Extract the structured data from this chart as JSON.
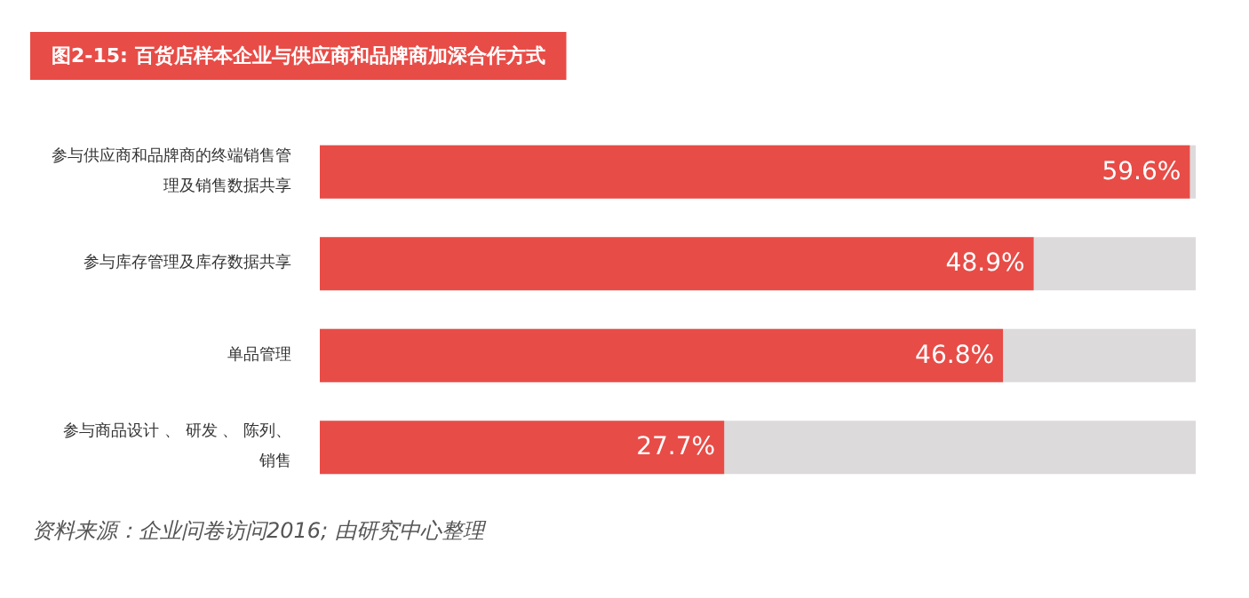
{
  "chart_data": {
    "type": "bar",
    "orientation": "horizontal",
    "title": "图2-15: 百货店样本企业与供应商和品牌商加深合作方式",
    "categories": [
      "参与供应商和品牌商的终端销售管理及销售数据共享",
      "参与库存管理及库存数据共享",
      "单品管理",
      "参与商品设计 、 研发 、 陈列、销售"
    ],
    "values": [
      59.6,
      48.9,
      46.8,
      27.7
    ],
    "value_labels": [
      "59.6%",
      "48.9%",
      "46.8%",
      "27.7%"
    ],
    "color": "#e84c47",
    "tick_labels": "y",
    "annotations": [
      "资料来源：企业问卷访问2016; 由研究中心整理"
    ]
  }
}
